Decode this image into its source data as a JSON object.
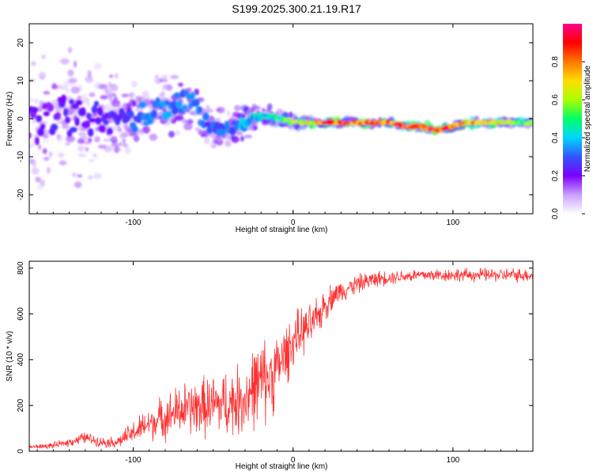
{
  "title": "S199.2025.300.21.19.R17",
  "chart_data": [
    {
      "type": "heatmap",
      "title": "S199.2025.300.21.19.R17",
      "xlabel": "Height of straight line (km)",
      "ylabel": "Frequency (Hz)",
      "xlim": [
        -165,
        150
      ],
      "ylim": [
        -25,
        25
      ],
      "xticks": [
        -100,
        0,
        100
      ],
      "xtick_labels": [
        "-100",
        "0",
        "100"
      ],
      "yticks": [
        -20,
        -10,
        0,
        10,
        20
      ],
      "ytick_labels": [
        "-20",
        "-10",
        "0",
        "10",
        "20"
      ],
      "colorbar": {
        "label": "Normalized spectral amplitude",
        "range": [
          0,
          1
        ],
        "ticks": [
          0.0,
          0.2,
          0.4,
          0.6,
          0.8
        ],
        "tick_labels": [
          "0.0",
          "0.2",
          "0.4",
          "0.6",
          "0.8"
        ],
        "colormap": [
          "#ffffff",
          "#c9a0ff",
          "#7b00ff",
          "#3355ff",
          "#00d6ff",
          "#00ff66",
          "#aaff00",
          "#ffdd00",
          "#ff7700",
          "#ff0000",
          "#ff0088"
        ]
      },
      "ridge": {
        "x": [
          -165,
          -140,
          -120,
          -100,
          -80,
          -65,
          -50,
          -35,
          -20,
          -10,
          0,
          10,
          20,
          30,
          40,
          50,
          60,
          70,
          80,
          90,
          100,
          110,
          120,
          130,
          140,
          150
        ],
        "freq": [
          0,
          0,
          0,
          0,
          3,
          5,
          -3,
          -2,
          1,
          0,
          -1,
          -1,
          -1,
          -1,
          -1,
          -1,
          -1,
          -2,
          -2,
          -3,
          -2,
          -1,
          -1,
          -1,
          -1,
          -1
        ],
        "amplitude": [
          0.2,
          0.25,
          0.25,
          0.3,
          0.35,
          0.35,
          0.3,
          0.35,
          0.45,
          0.5,
          0.6,
          0.7,
          0.85,
          0.95,
          0.95,
          0.9,
          0.85,
          0.95,
          0.9,
          0.95,
          0.85,
          0.8,
          0.75,
          0.7,
          0.6,
          0.55
        ],
        "spread": [
          20,
          18,
          15,
          10,
          8,
          8,
          6,
          5,
          3,
          2,
          1.5,
          1.2,
          1,
          1,
          1,
          1,
          1,
          1,
          1,
          1,
          1,
          1,
          1,
          1,
          1,
          1
        ]
      }
    },
    {
      "type": "line",
      "xlabel": "Height of straight line (km)",
      "ylabel": "SNR (10 * v/v)",
      "xlim": [
        -165,
        150
      ],
      "ylim": [
        0,
        830
      ],
      "xticks": [
        -100,
        0,
        100
      ],
      "xtick_labels": [
        "-100",
        "0",
        "100"
      ],
      "yticks": [
        0,
        200,
        400,
        600,
        800
      ],
      "ytick_labels": [
        "0",
        "200",
        "400",
        "600",
        "800"
      ],
      "color": "#ff3030",
      "series": [
        {
          "name": "SNR",
          "x": [
            -165,
            -160,
            -150,
            -140,
            -130,
            -120,
            -110,
            -100,
            -90,
            -80,
            -70,
            -60,
            -50,
            -40,
            -30,
            -25,
            -20,
            -15,
            -10,
            -5,
            0,
            5,
            10,
            15,
            20,
            25,
            30,
            40,
            50,
            60,
            70,
            80,
            90,
            100,
            110,
            120,
            130,
            140,
            150
          ],
          "values": [
            20,
            20,
            25,
            40,
            60,
            40,
            40,
            80,
            120,
            150,
            180,
            190,
            200,
            210,
            230,
            280,
            300,
            320,
            360,
            420,
            480,
            520,
            540,
            580,
            640,
            680,
            700,
            730,
            750,
            760,
            765,
            770,
            770,
            770,
            770,
            770,
            770,
            770,
            770
          ],
          "jitter": [
            10,
            10,
            12,
            18,
            25,
            20,
            25,
            50,
            70,
            90,
            110,
            120,
            130,
            140,
            150,
            170,
            180,
            170,
            150,
            130,
            110,
            100,
            90,
            80,
            70,
            55,
            45,
            40,
            35,
            30,
            28,
            28,
            28,
            28,
            28,
            28,
            28,
            28,
            28
          ]
        }
      ]
    }
  ]
}
